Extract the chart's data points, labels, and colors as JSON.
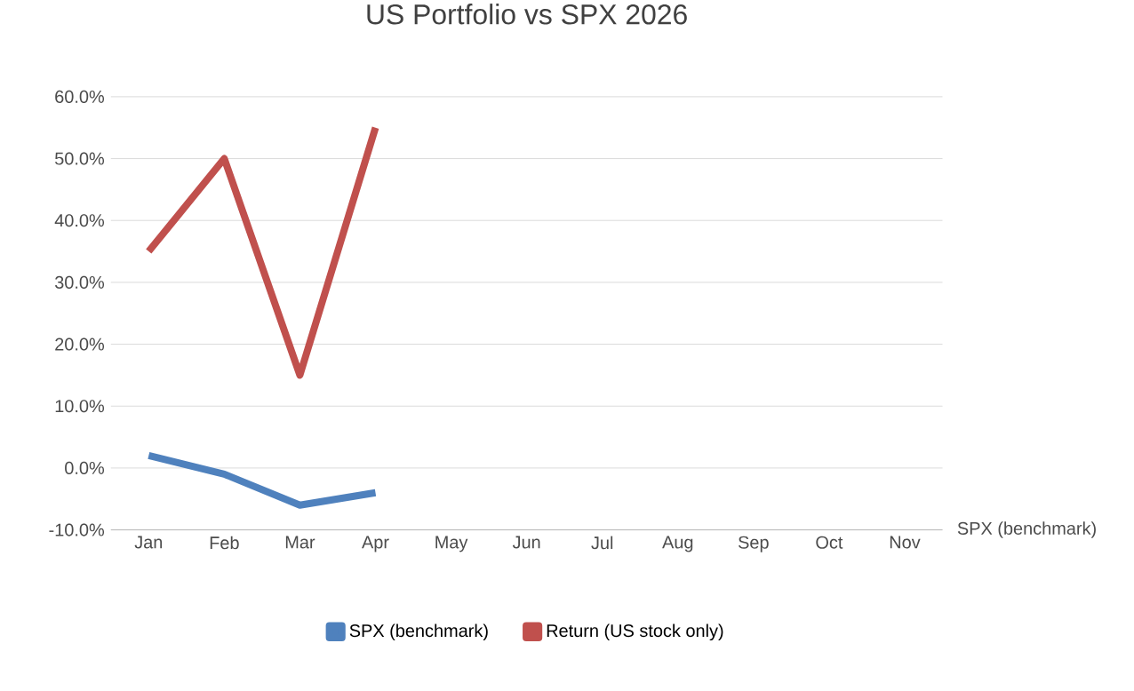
{
  "chart_data": {
    "type": "line",
    "title": "US Portfolio vs SPX 2026",
    "categories": [
      "Jan",
      "Feb",
      "Mar",
      "Apr",
      "May",
      "Jun",
      "Jul",
      "Aug",
      "Sep",
      "Oct",
      "Nov"
    ],
    "series": [
      {
        "name": "SPX (benchmark)",
        "color": "#4f81bd",
        "values": [
          2,
          -1,
          -6,
          -4,
          null,
          null,
          null,
          null,
          null,
          null,
          null
        ]
      },
      {
        "name": "Return (US stock only)",
        "color": "#c0504d",
        "values": [
          35,
          50,
          15,
          55,
          null,
          null,
          null,
          null,
          null,
          null,
          null
        ]
      }
    ],
    "ylim": [
      -10,
      60
    ],
    "yticks": [
      {
        "value": -10,
        "label": "-10.0%"
      },
      {
        "value": 0,
        "label": "0.0%"
      },
      {
        "value": 10,
        "label": "10.0%"
      },
      {
        "value": 20,
        "label": "20.0%"
      },
      {
        "value": 30,
        "label": "30.0%"
      },
      {
        "value": 40,
        "label": "40.0%"
      },
      {
        "value": 50,
        "label": "50.0%"
      },
      {
        "value": 60,
        "label": "60.0%"
      }
    ],
    "annotations": [
      "SPX (benchmark)"
    ],
    "grid": "y",
    "legend": "bottom",
    "marker": "none",
    "line_style": "solid"
  }
}
